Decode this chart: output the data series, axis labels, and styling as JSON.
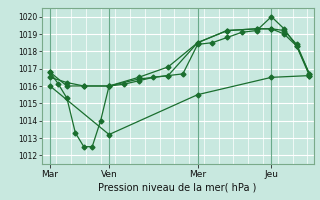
{
  "title": "Pression niveau de la mer( hPa )",
  "bg_color": "#c8e8df",
  "grid_color": "#ffffff",
  "line_color": "#1a6e2e",
  "ylim": [
    1011.5,
    1020.5
  ],
  "yticks": [
    1012,
    1013,
    1014,
    1015,
    1016,
    1017,
    1018,
    1019,
    1020
  ],
  "day_labels": [
    "Mar",
    "Ven",
    "Mer",
    "Jeu"
  ],
  "day_positions": [
    0,
    56,
    140,
    210
  ],
  "xlim": [
    -8,
    250
  ],
  "series1_x": [
    0,
    8,
    16,
    24,
    32,
    40,
    48,
    56,
    70,
    84,
    98,
    112,
    126,
    140,
    154,
    168,
    182,
    196,
    210,
    222,
    234,
    246
  ],
  "series1_y": [
    1016.8,
    1016.1,
    1015.3,
    1013.3,
    1012.5,
    1012.5,
    1014.0,
    1016.0,
    1016.1,
    1016.3,
    1016.5,
    1016.6,
    1016.7,
    1018.4,
    1018.5,
    1018.8,
    1019.1,
    1019.2,
    1020.0,
    1019.3,
    1018.3,
    1016.6
  ],
  "series2_x": [
    0,
    16,
    32,
    56,
    84,
    112,
    140,
    168,
    196,
    210,
    222,
    234,
    246
  ],
  "series2_y": [
    1016.5,
    1016.2,
    1016.0,
    1016.0,
    1016.4,
    1016.6,
    1018.5,
    1019.2,
    1019.3,
    1019.3,
    1019.2,
    1018.4,
    1016.7
  ],
  "series3_x": [
    0,
    16,
    32,
    56,
    84,
    112,
    140,
    168,
    196,
    210,
    222,
    234,
    246
  ],
  "series3_y": [
    1016.8,
    1016.0,
    1016.0,
    1016.0,
    1016.5,
    1017.1,
    1018.5,
    1019.2,
    1019.3,
    1019.3,
    1019.0,
    1018.3,
    1016.7
  ],
  "series4_x": [
    0,
    56,
    140,
    210,
    246
  ],
  "series4_y": [
    1016.0,
    1013.2,
    1015.5,
    1016.5,
    1016.6
  ]
}
